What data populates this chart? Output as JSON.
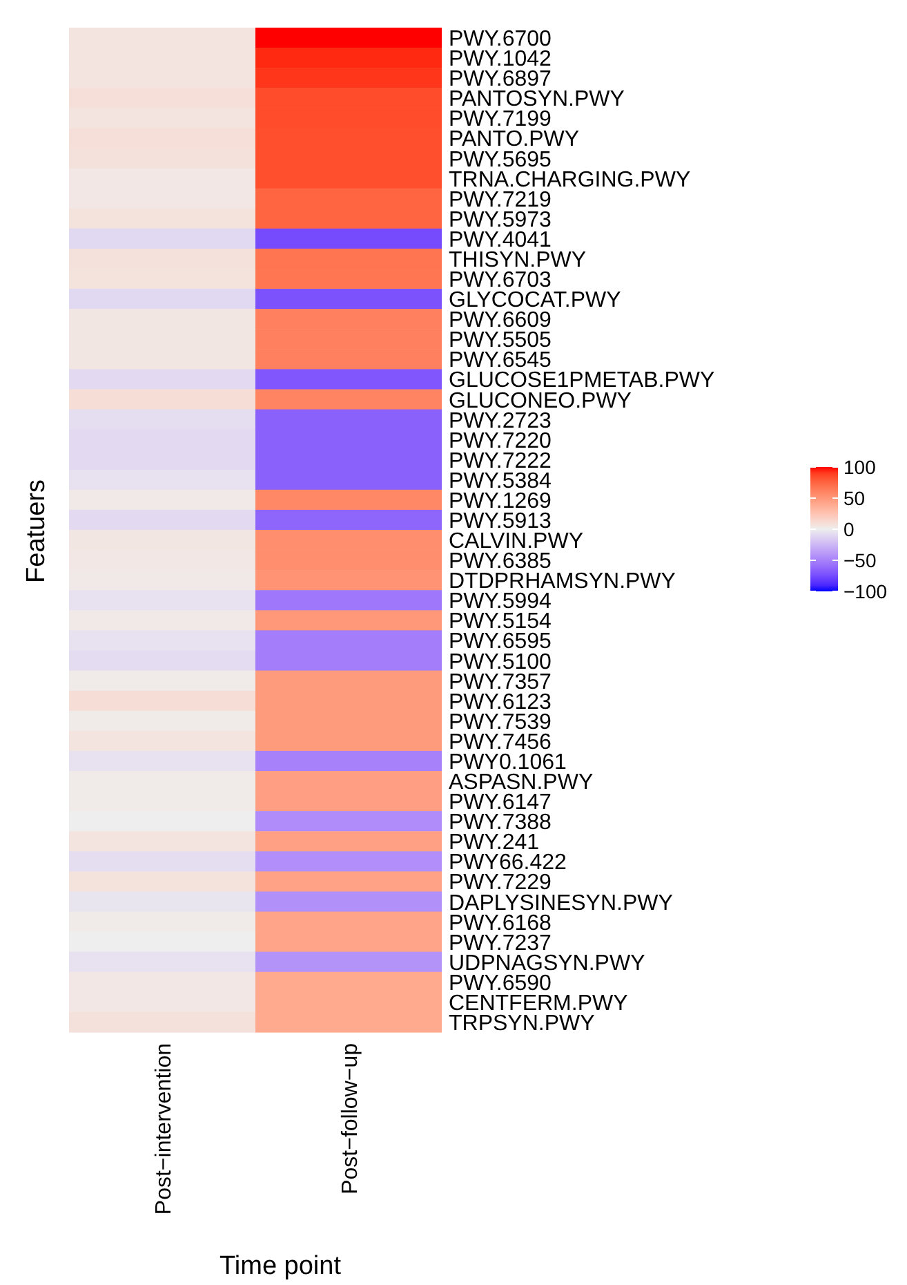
{
  "chart_data": {
    "type": "heatmap",
    "xlabel": "Time point",
    "ylabel": "Featuers",
    "categories": [
      "Post−intervention",
      "Post−follow−up"
    ],
    "y_categories": [
      "PWY.6700",
      "PWY.1042",
      "PWY.6897",
      "PANTOSYN.PWY",
      "PWY.7199",
      "PANTO.PWY",
      "PWY.5695",
      "TRNA.CHARGING.PWY",
      "PWY.7219",
      "PWY.5973",
      "PWY.4041",
      "THISYN.PWY",
      "PWY.6703",
      "GLYCOCAT.PWY",
      "PWY.6609",
      "PWY.5505",
      "PWY.6545",
      "GLUCOSE1PMETAB.PWY",
      "GLUCONEO.PWY",
      "PWY.2723",
      "PWY.7220",
      "PWY.7222",
      "PWY.5384",
      "PWY.1269",
      "PWY.5913",
      "CALVIN.PWY",
      "PWY.6385",
      "DTDPRHAMSYN.PWY",
      "PWY.5994",
      "PWY.5154",
      "PWY.6595",
      "PWY.5100",
      "PWY.7357",
      "PWY.6123",
      "PWY.7539",
      "PWY.7456",
      "PWY0.1061",
      "ASPASN.PWY",
      "PWY.6147",
      "PWY.7388",
      "PWY.241",
      "PWY66.422",
      "PWY.7229",
      "DAPLYSINESYN.PWY",
      "PWY.6168",
      "PWY.7237",
      "UDPNAGSYN.PWY",
      "PWY.6590",
      "CENTFERM.PWY",
      "TRPSYN.PWY"
    ],
    "cells": [
      [
        6,
        100
      ],
      [
        6,
        95
      ],
      [
        6,
        92
      ],
      [
        9,
        85
      ],
      [
        6,
        85
      ],
      [
        9,
        84
      ],
      [
        8,
        84
      ],
      [
        4,
        84
      ],
      [
        4,
        75
      ],
      [
        7,
        75
      ],
      [
        -10,
        -75
      ],
      [
        8,
        68
      ],
      [
        7,
        67
      ],
      [
        -10,
        -72
      ],
      [
        5,
        62
      ],
      [
        5,
        62
      ],
      [
        5,
        62
      ],
      [
        -9,
        -70
      ],
      [
        10,
        60
      ],
      [
        -7,
        -65
      ],
      [
        -9,
        -65
      ],
      [
        -9,
        -65
      ],
      [
        -6,
        -65
      ],
      [
        3,
        58
      ],
      [
        -9,
        -63
      ],
      [
        5,
        55
      ],
      [
        4,
        55
      ],
      [
        3,
        52
      ],
      [
        -6,
        -55
      ],
      [
        3,
        50
      ],
      [
        -6,
        -52
      ],
      [
        -8,
        -52
      ],
      [
        2,
        48
      ],
      [
        10,
        48
      ],
      [
        2,
        48
      ],
      [
        6,
        48
      ],
      [
        -6,
        -50
      ],
      [
        2,
        46
      ],
      [
        2,
        46
      ],
      [
        0,
        -45
      ],
      [
        6,
        45
      ],
      [
        -7,
        -44
      ],
      [
        7,
        44
      ],
      [
        -4,
        -43
      ],
      [
        2,
        43
      ],
      [
        0,
        43
      ],
      [
        -6,
        -42
      ],
      [
        4,
        40
      ],
      [
        4,
        40
      ],
      [
        8,
        40
      ]
    ],
    "clim": [
      -100,
      100
    ],
    "cticks": [
      100,
      50,
      0,
      {
        "value": -50,
        "label": "−50"
      },
      {
        "value": -100,
        "label": "−100"
      }
    ]
  }
}
